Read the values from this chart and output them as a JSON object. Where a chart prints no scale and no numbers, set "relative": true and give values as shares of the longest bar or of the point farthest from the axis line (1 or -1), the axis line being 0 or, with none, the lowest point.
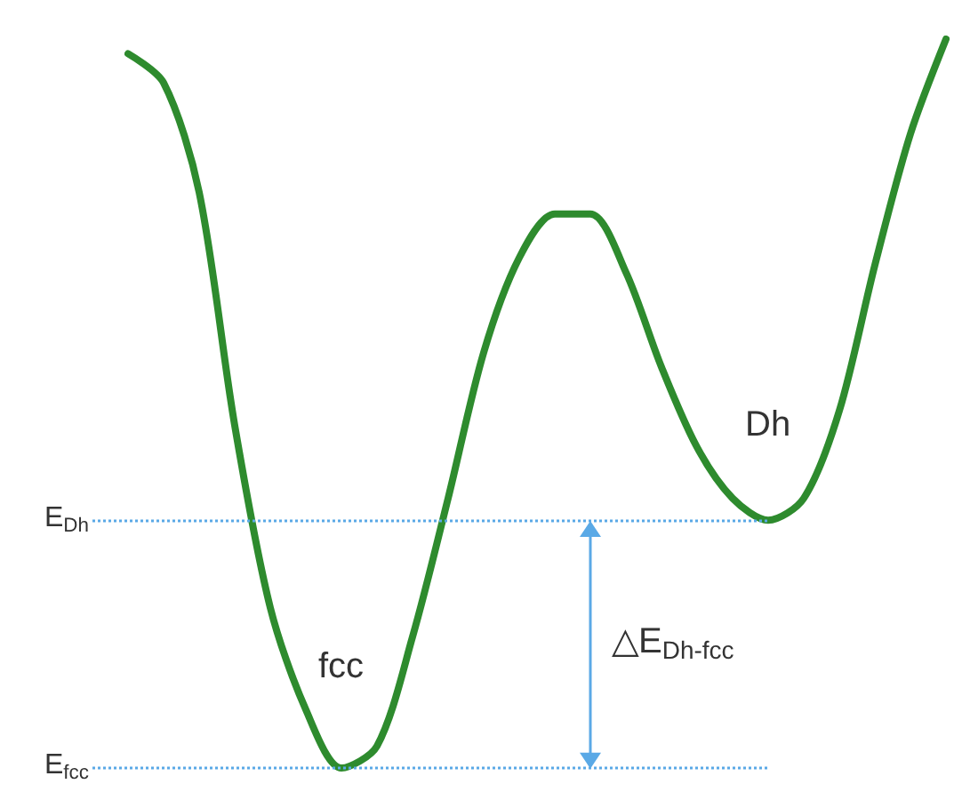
{
  "chart_data": {
    "type": "line",
    "relative": true,
    "categories": [
      null,
      null,
      null,
      null,
      null,
      null,
      null,
      null,
      null,
      null,
      null,
      null,
      null,
      null,
      null,
      null,
      null,
      null,
      null,
      null,
      null,
      null,
      null,
      null
    ],
    "series": [
      {
        "color": "#2e8b2e",
        "values": [
          0.98,
          0.94,
          0.79,
          0.47,
          0.22,
          0.08,
          0,
          0.03,
          0.18,
          0.37,
          0.57,
          0.7,
          0.76,
          0.76,
          0.68,
          0.55,
          0.44,
          0.37,
          0.34,
          0.37,
          0.49,
          0.69,
          0.87,
          1.0
        ]
      }
    ],
    "ref_lines": [
      {
        "axis": "y",
        "value": 0.34,
        "label": "E$_{Dh}$",
        "color": "#5aa9e6",
        "line_style": "dotted"
      },
      {
        "axis": "y",
        "value": 0,
        "label": "E$_{fcc}$",
        "color": "#5aa9e6",
        "line_style": "dotted"
      }
    ],
    "annotations": [
      "fcc",
      "Dh",
      "△E$_{Dh-fcc}$"
    ],
    "marker": "none",
    "line_style": "solid"
  }
}
